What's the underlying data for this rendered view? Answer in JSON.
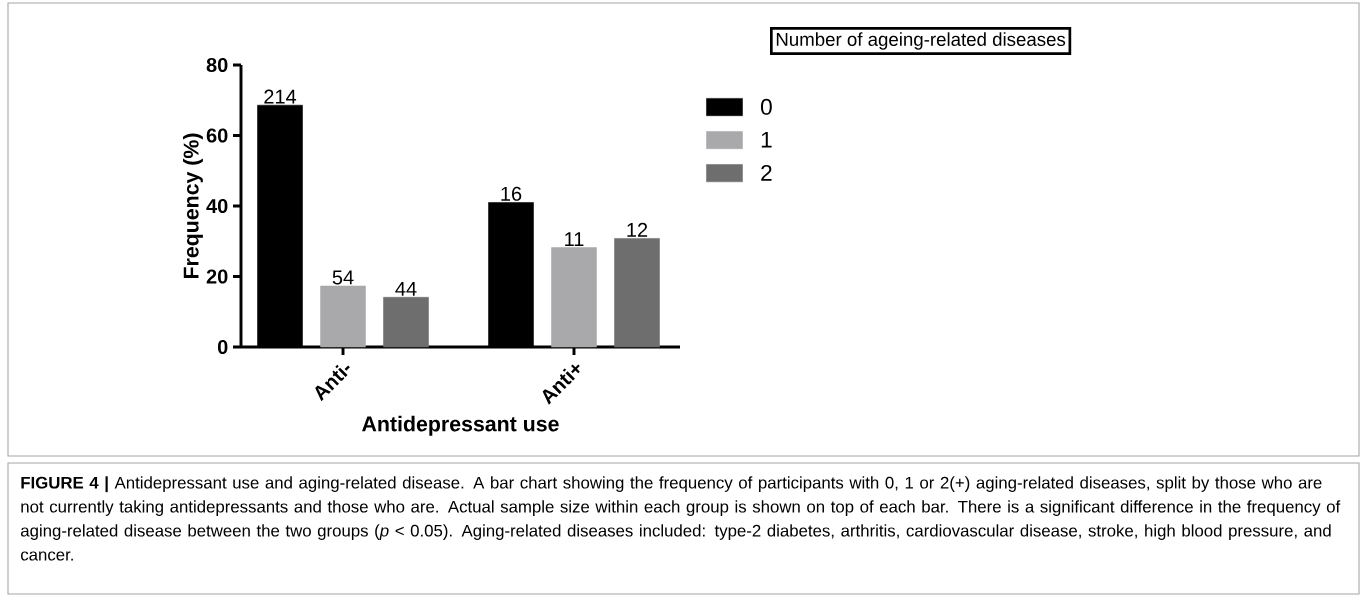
{
  "chart_data": {
    "type": "bar",
    "xlabel": "Antidepressant use",
    "ylabel": "Frequency (%)",
    "legend_title": "Number of ageing-related diseases",
    "categories": [
      "Anti-",
      "Anti+"
    ],
    "series": [
      {
        "name": "0",
        "color": "#000000",
        "values": [
          68.6,
          41.0
        ]
      },
      {
        "name": "1",
        "color": "#a9a8ab",
        "values": [
          17.3,
          28.2
        ]
      },
      {
        "name": "2",
        "color": "#6e6e6e",
        "values": [
          14.1,
          30.8
        ]
      }
    ],
    "ylim": [
      0,
      80
    ],
    "yticks": [
      0,
      20,
      40,
      60,
      80
    ],
    "grid": false,
    "legend": "top right",
    "annotations": [
      "214",
      "54",
      "44",
      "16",
      "11",
      "12",
      "**FIGURE 4 |** Antidepressant use and aging-related disease. A bar chart showing the frequency of participants with 0, 1 or 2(+) aging-related diseases, split by those who are not currently taking antidepressants and those who are. Actual sample size within each group is shown on top of each bar. There is a significant difference in the frequency of aging-related disease between the two groups (*p* < 0.05). Aging-related diseases included: type-2 diabetes, arthritis, cardiovascular disease, stroke, high blood pressure, and cancer."
    ]
  }
}
